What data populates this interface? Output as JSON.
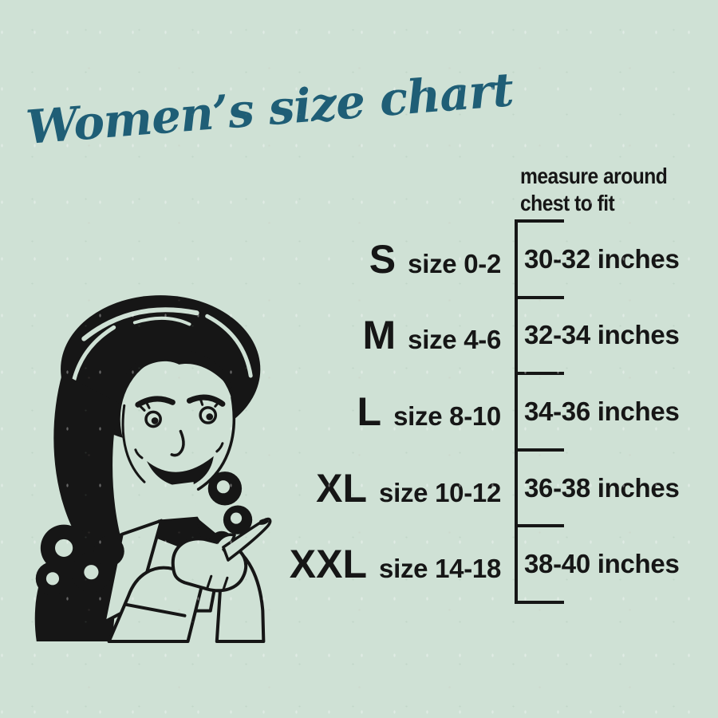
{
  "colors": {
    "background": "#cfe1d5",
    "ink": "#161616",
    "accent": "#1f5e76"
  },
  "title": {
    "text": "Women’s size chart"
  },
  "measure_note": {
    "line1": "measure around",
    "line2": "chest to fit"
  },
  "illustration": {
    "name": "retro-woman-pointing"
  },
  "chart_data": {
    "type": "table",
    "title": "Women’s size chart",
    "note": "measure around chest to fit",
    "columns": [
      "size",
      "dress_size",
      "chest_to_fit"
    ],
    "rows": [
      {
        "size": "S",
        "dress_size": "size 0-2",
        "chest": "30-32 inches"
      },
      {
        "size": "M",
        "dress_size": "size 4-6",
        "chest": "32-34 inches"
      },
      {
        "size": "L",
        "dress_size": "size 8-10",
        "chest": "34-36 inches"
      },
      {
        "size": "XL",
        "dress_size": "size 10-12",
        "chest": "36-38 inches"
      },
      {
        "size": "XXL",
        "dress_size": "size 14-18",
        "chest": "38-40 inches"
      }
    ]
  }
}
